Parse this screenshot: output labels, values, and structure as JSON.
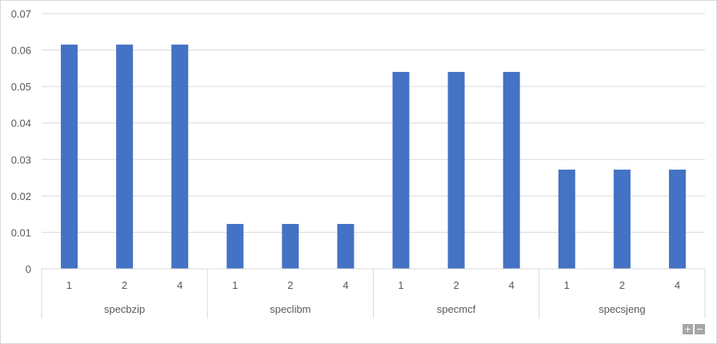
{
  "chart_data": {
    "type": "bar",
    "groups": [
      {
        "label": "specbzip",
        "categories": [
          "1",
          "2",
          "4"
        ],
        "values": [
          0.0615,
          0.0615,
          0.0615
        ]
      },
      {
        "label": "speclibm",
        "categories": [
          "1",
          "2",
          "4"
        ],
        "values": [
          0.0123,
          0.0123,
          0.0123
        ]
      },
      {
        "label": "specmcf",
        "categories": [
          "1",
          "2",
          "4"
        ],
        "values": [
          0.054,
          0.054,
          0.054
        ]
      },
      {
        "label": "specsjeng",
        "categories": [
          "1",
          "2",
          "4"
        ],
        "values": [
          0.0272,
          0.0272,
          0.0272
        ]
      }
    ],
    "y_ticks": [
      "0",
      "0.01",
      "0.02",
      "0.03",
      "0.04",
      "0.05",
      "0.06",
      "0.07"
    ],
    "ylim": [
      0,
      0.07
    ],
    "grid": true,
    "bar_color": "#4472C4",
    "gridline_color": "#d9d9d9"
  },
  "controls": {
    "zoom_in": "+",
    "zoom_out": "−"
  }
}
